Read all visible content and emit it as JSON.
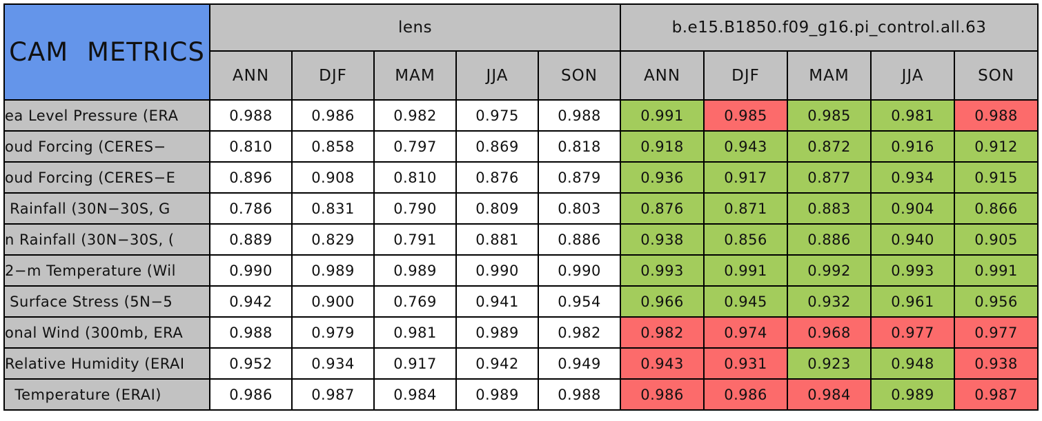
{
  "colors": {
    "blue": "#6495EA",
    "grey": "#C2C2C2",
    "green": "#A3CC5C",
    "red": "#FC6B6B",
    "border": "#000000"
  },
  "chart_data": {
    "type": "table",
    "corner_label": "CAM METRICS",
    "groups": [
      {
        "name": "lens",
        "seasons": [
          "ANN",
          "DJF",
          "MAM",
          "JJA",
          "SON"
        ]
      },
      {
        "name": "b.e15.B1850.f09_g16.pi_control.all.63",
        "seasons": [
          "ANN",
          "DJF",
          "MAM",
          "JJA",
          "SON"
        ]
      }
    ],
    "rows": [
      {
        "label": "ea Level Pressure (ERA",
        "lens": [
          "0.988",
          "0.986",
          "0.982",
          "0.975",
          "0.988"
        ],
        "control": [
          "0.991",
          "0.985",
          "0.985",
          "0.981",
          "0.988"
        ],
        "control_status": [
          "green",
          "red",
          "green",
          "green",
          "red"
        ]
      },
      {
        "label": "oud Forcing (CERES−",
        "lens": [
          "0.810",
          "0.858",
          "0.797",
          "0.869",
          "0.818"
        ],
        "control": [
          "0.918",
          "0.943",
          "0.872",
          "0.916",
          "0.912"
        ],
        "control_status": [
          "green",
          "green",
          "green",
          "green",
          "green"
        ]
      },
      {
        "label": "oud Forcing (CERES−E",
        "lens": [
          "0.896",
          "0.908",
          "0.810",
          "0.876",
          "0.879"
        ],
        "control": [
          "0.936",
          "0.917",
          "0.877",
          "0.934",
          "0.915"
        ],
        "control_status": [
          "green",
          "green",
          "green",
          "green",
          "green"
        ]
      },
      {
        "label": " Rainfall (30N−30S, G",
        "lens": [
          "0.786",
          "0.831",
          "0.790",
          "0.809",
          "0.803"
        ],
        "control": [
          "0.876",
          "0.871",
          "0.883",
          "0.904",
          "0.866"
        ],
        "control_status": [
          "green",
          "green",
          "green",
          "green",
          "green"
        ]
      },
      {
        "label": "n Rainfall (30N−30S, (",
        "lens": [
          "0.889",
          "0.829",
          "0.791",
          "0.881",
          "0.886"
        ],
        "control": [
          "0.938",
          "0.856",
          "0.886",
          "0.940",
          "0.905"
        ],
        "control_status": [
          "green",
          "green",
          "green",
          "green",
          "green"
        ]
      },
      {
        "label": "2−m Temperature (Wil",
        "lens": [
          "0.990",
          "0.989",
          "0.989",
          "0.990",
          "0.990"
        ],
        "control": [
          "0.993",
          "0.991",
          "0.992",
          "0.993",
          "0.991"
        ],
        "control_status": [
          "green",
          "green",
          "green",
          "green",
          "green"
        ]
      },
      {
        "label": " Surface Stress (5N−5",
        "lens": [
          "0.942",
          "0.900",
          "0.769",
          "0.941",
          "0.954"
        ],
        "control": [
          "0.966",
          "0.945",
          "0.932",
          "0.961",
          "0.956"
        ],
        "control_status": [
          "green",
          "green",
          "green",
          "green",
          "green"
        ]
      },
      {
        "label": "onal Wind (300mb, ERA",
        "lens": [
          "0.988",
          "0.979",
          "0.981",
          "0.989",
          "0.982"
        ],
        "control": [
          "0.982",
          "0.974",
          "0.968",
          "0.977",
          "0.977"
        ],
        "control_status": [
          "red",
          "red",
          "red",
          "red",
          "red"
        ]
      },
      {
        "label": "Relative Humidity (ERAI",
        "lens": [
          "0.952",
          "0.934",
          "0.917",
          "0.942",
          "0.949"
        ],
        "control": [
          "0.943",
          "0.931",
          "0.923",
          "0.948",
          "0.938"
        ],
        "control_status": [
          "red",
          "red",
          "green",
          "green",
          "red"
        ]
      },
      {
        "label": "  Temperature (ERAI)",
        "lens": [
          "0.986",
          "0.987",
          "0.984",
          "0.989",
          "0.988"
        ],
        "control": [
          "0.986",
          "0.986",
          "0.984",
          "0.989",
          "0.987"
        ],
        "control_status": [
          "red",
          "red",
          "red",
          "green",
          "red"
        ]
      }
    ]
  }
}
